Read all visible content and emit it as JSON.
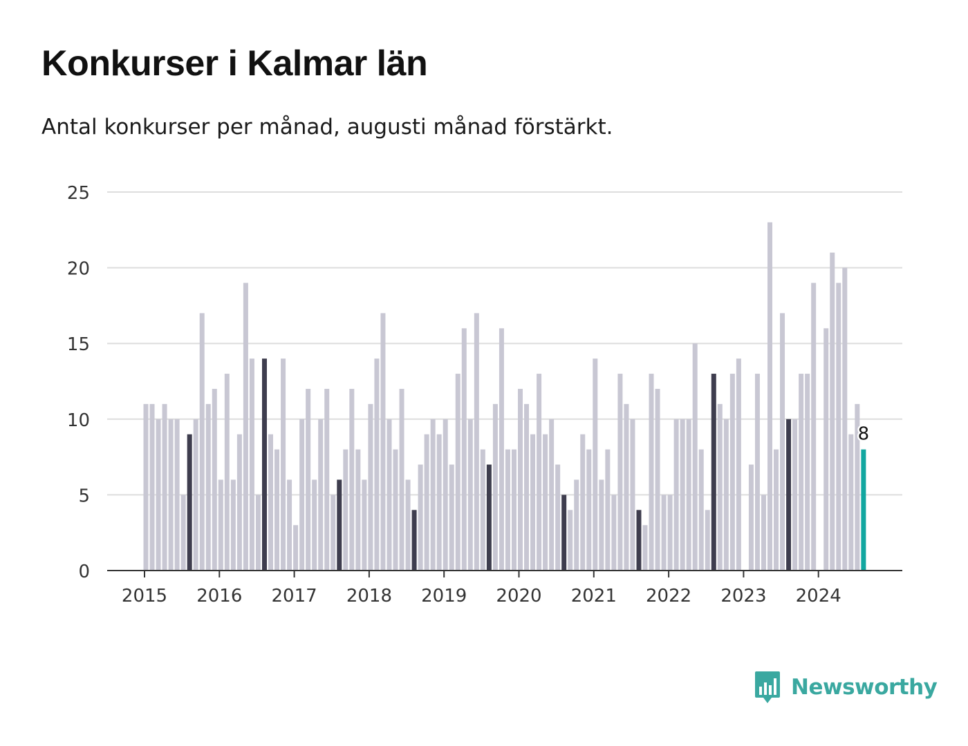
{
  "title": "Konkurser i Kalmar län",
  "subtitle": "Antal konkurser per månad, augusti månad förstärkt.",
  "brand": {
    "name": "Newsworthy",
    "icon": "bar-chart-speech-bubble-icon",
    "color": "#3aa8a0"
  },
  "colors": {
    "normal": "#c8c7d3",
    "august": "#3e3d4e",
    "current": "#11a7a0",
    "grid": "#dddddd",
    "axis": "#333333"
  },
  "chart_data": {
    "type": "bar",
    "ylim": [
      0,
      25
    ],
    "yticks": [
      0,
      5,
      10,
      15,
      20,
      25
    ],
    "xticks": [
      "2015",
      "2016",
      "2017",
      "2018",
      "2019",
      "2020",
      "2021",
      "2022",
      "2023",
      "2024"
    ],
    "start": "2015-01",
    "grid": true,
    "highlight_month": "augusti",
    "annotation": {
      "month": "2024-08",
      "label": "8"
    },
    "series": [
      {
        "values": [
          11,
          11,
          10,
          11,
          10,
          10,
          5,
          9,
          10,
          17,
          11,
          12,
          6,
          13,
          6,
          9,
          19,
          14,
          5,
          14,
          9,
          8,
          14,
          6,
          3,
          10,
          12,
          6,
          10,
          12,
          5,
          6,
          8,
          12,
          8,
          6,
          11,
          14,
          17,
          10,
          8,
          12,
          6,
          4,
          7,
          9,
          10,
          9,
          10,
          7,
          13,
          16,
          10,
          17,
          8,
          7,
          11,
          16,
          8,
          8,
          12,
          11,
          9,
          13,
          9,
          10,
          7,
          5,
          4,
          6,
          9,
          8,
          14,
          6,
          8,
          5,
          13,
          11,
          10,
          4,
          3,
          13,
          12,
          5,
          5,
          10,
          10,
          10,
          15,
          8,
          4,
          13,
          11,
          10,
          13,
          14,
          0,
          7,
          13,
          5,
          23,
          8,
          17,
          10,
          10,
          13,
          13,
          19,
          0,
          16,
          21,
          19,
          20,
          9,
          11,
          8
        ]
      }
    ]
  }
}
